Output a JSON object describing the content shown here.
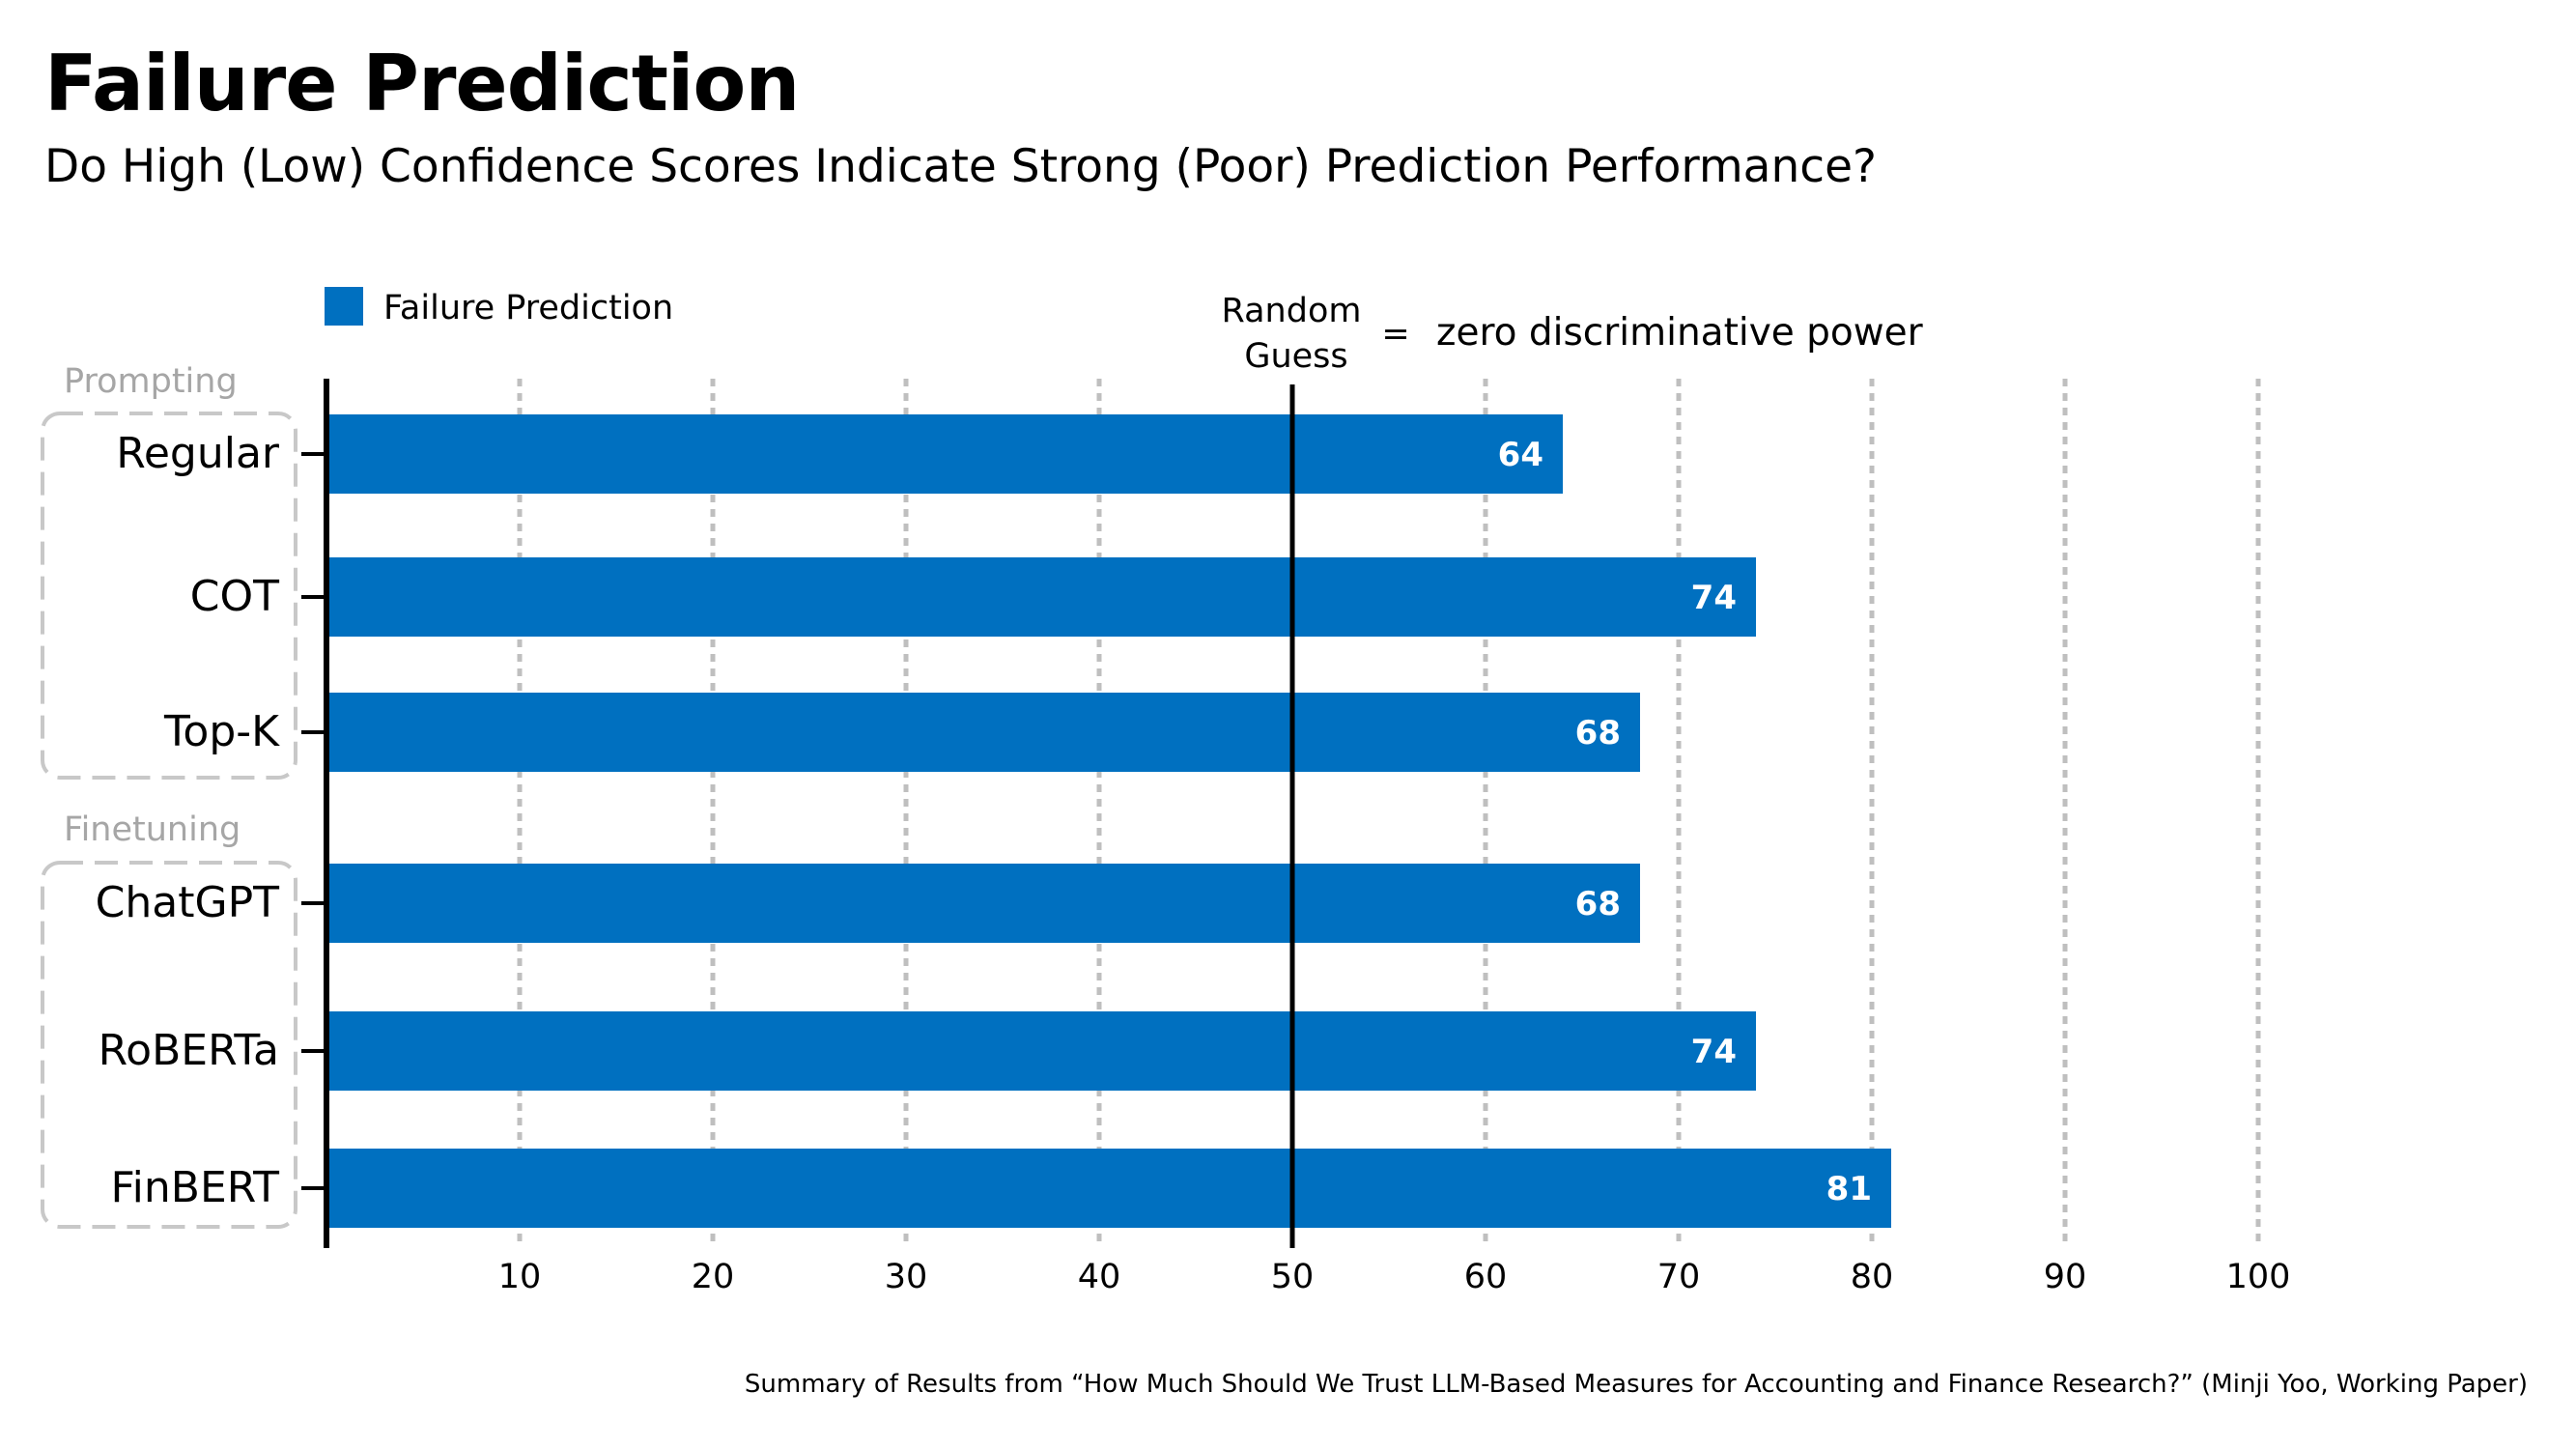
{
  "title": "Failure Prediction",
  "subtitle": "Do High (Low) Confidence Scores Indicate Strong (Poor) Prediction Performance?",
  "footnote": "Summary of Results from “How Much Should We Trust LLM-Based Measures for Accounting and Finance Research?” (Minji Yoo, Working Paper)",
  "colors": {
    "bar": "#0070C0",
    "grid": "#bfbfbf",
    "group_label": "#a6a6a6",
    "group_box": "#c8c8c8"
  },
  "chart_data": {
    "type": "bar",
    "orientation": "horizontal",
    "categories": [
      "Regular",
      "COT",
      "Top-K",
      "ChatGPT",
      "RoBERTa",
      "FinBERT"
    ],
    "groups": [
      {
        "label": "Prompting",
        "members": [
          "Regular",
          "COT",
          "Top-K"
        ]
      },
      {
        "label": "Finetuning",
        "members": [
          "ChatGPT",
          "RoBERTa",
          "FinBERT"
        ]
      }
    ],
    "series": [
      {
        "name": "Failure Prediction",
        "values": [
          64,
          74,
          68,
          68,
          74,
          81
        ]
      }
    ],
    "data_labels": [
      "64",
      "74",
      "68",
      "68",
      "74",
      "81"
    ],
    "xlim": [
      0,
      100
    ],
    "xticks": [
      10,
      20,
      30,
      40,
      50,
      60,
      70,
      80,
      90,
      100
    ],
    "grid": "vertical dotted",
    "legend": "top-left",
    "reference_line": {
      "x": 50,
      "label_line1": "Random",
      "label_line2": "Guess",
      "equals": "=",
      "note": "zero discriminative power"
    }
  }
}
